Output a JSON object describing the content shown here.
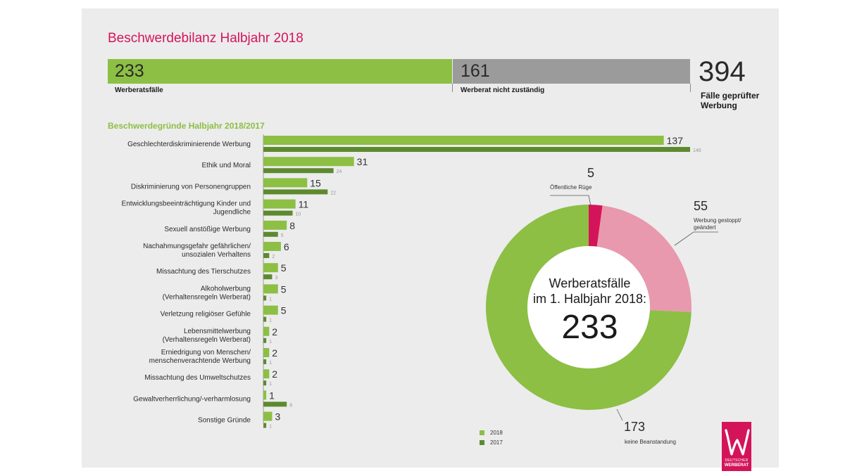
{
  "header": {
    "title": "Beschwerdebilanz Halbjahr 2018"
  },
  "summary": {
    "werberat_count": "233",
    "werberat_label": "Werberatsfälle",
    "nicht_count": "161",
    "nicht_label": "Werberat nicht zuständig",
    "total_count": "394",
    "total_label": "Fälle geprüfter Werbung"
  },
  "colors": {
    "green_light": "#8cbf44",
    "green_dark": "#5d8a2f",
    "gray": "#9b9b9b",
    "magenta": "#d4145a",
    "pink": "#e899ad",
    "title": "#d4145a"
  },
  "chart_data": [
    {
      "type": "bar",
      "orientation": "horizontal",
      "title": "Beschwerdegründe Halbjahr 2018/2017",
      "categories": [
        "Geschlechterdiskriminierende Werbung",
        "Ethik und Moral",
        "Diskriminierung von Personengruppen",
        "Entwicklungsbeeinträchtigung Kinder und Jugendliche",
        "Sexuell anstößige Werbung",
        "Nachahmungsgefahr gefährlichen/ unsozialen Verhaltens",
        "Missachtung des Tierschutzes",
        "Alkoholwerbung (Verhaltensregeln Werberat)",
        "Verletzung religiöser Gefühle",
        "Lebensmittelwerbung (Verhaltensregeln Werberat)",
        "Erniedrigung von Menschen/ menschenverachtende Werbung",
        "Missachtung des Umweltschutzes",
        "Gewaltverherrlichung/-verharmlosung",
        "Sonstige Gründe"
      ],
      "category_lines": [
        [
          "Geschlechterdiskriminierende Werbung"
        ],
        [
          "Ethik und Moral"
        ],
        [
          "Diskriminierung von Personengruppen"
        ],
        [
          "Entwicklungsbeeinträchtigung Kinder und",
          "Jugendliche"
        ],
        [
          "Sexuell anstößige Werbung"
        ],
        [
          "Nachahmungsgefahr gefährlichen/",
          "unsozialen Verhaltens"
        ],
        [
          "Missachtung des Tierschutzes"
        ],
        [
          "Alkoholwerbung",
          "(Verhaltensregeln Werberat)"
        ],
        [
          "Verletzung religiöser Gefühle"
        ],
        [
          "Lebensmittelwerbung",
          "(Verhaltensregeln Werberat)"
        ],
        [
          "Erniedrigung von Menschen/",
          "menschenverachtende Werbung"
        ],
        [
          "Missachtung des Umweltschutzes"
        ],
        [
          "Gewaltverherrlichung/-verharmlosung"
        ],
        [
          "Sonstige Gründe"
        ]
      ],
      "series": [
        {
          "name": "2018",
          "values": [
            137,
            31,
            15,
            11,
            8,
            6,
            5,
            5,
            5,
            2,
            2,
            2,
            1,
            3
          ]
        },
        {
          "name": "2017",
          "values": [
            146,
            24,
            22,
            10,
            5,
            2,
            3,
            1,
            1,
            1,
            1,
            1,
            8,
            1
          ]
        }
      ],
      "xlim": [
        0,
        146
      ]
    },
    {
      "type": "pie",
      "variant": "donut",
      "title": "Werberatsfälle im 1. Halbjahr 2018:",
      "center_line1": "Werberatsfälle",
      "center_line2": "im 1. Halbjahr 2018:",
      "center_value": "233",
      "slices": [
        {
          "label": "Öffentliche Rüge",
          "value": 5,
          "color": "#d4145a"
        },
        {
          "label": "Werbung gestoppt/ geändert",
          "value": 55,
          "color": "#e899ad"
        },
        {
          "label": "keine Beanstandung",
          "value": 173,
          "color": "#8cbf44"
        }
      ]
    }
  ],
  "annotations": {
    "ruege_value": "5",
    "ruege_label": "Öffentliche Rüge",
    "gestoppt_value": "55",
    "gestoppt_label_1": "Werbung gestoppt/",
    "gestoppt_label_2": "geändert",
    "keine_value": "173",
    "keine_label": "keine Beanstandung"
  },
  "legend": {
    "item_2018": "2018",
    "item_2017": "2017"
  },
  "logo": {
    "line1": "DEUTSCHER",
    "line2": "WERBERAT"
  }
}
